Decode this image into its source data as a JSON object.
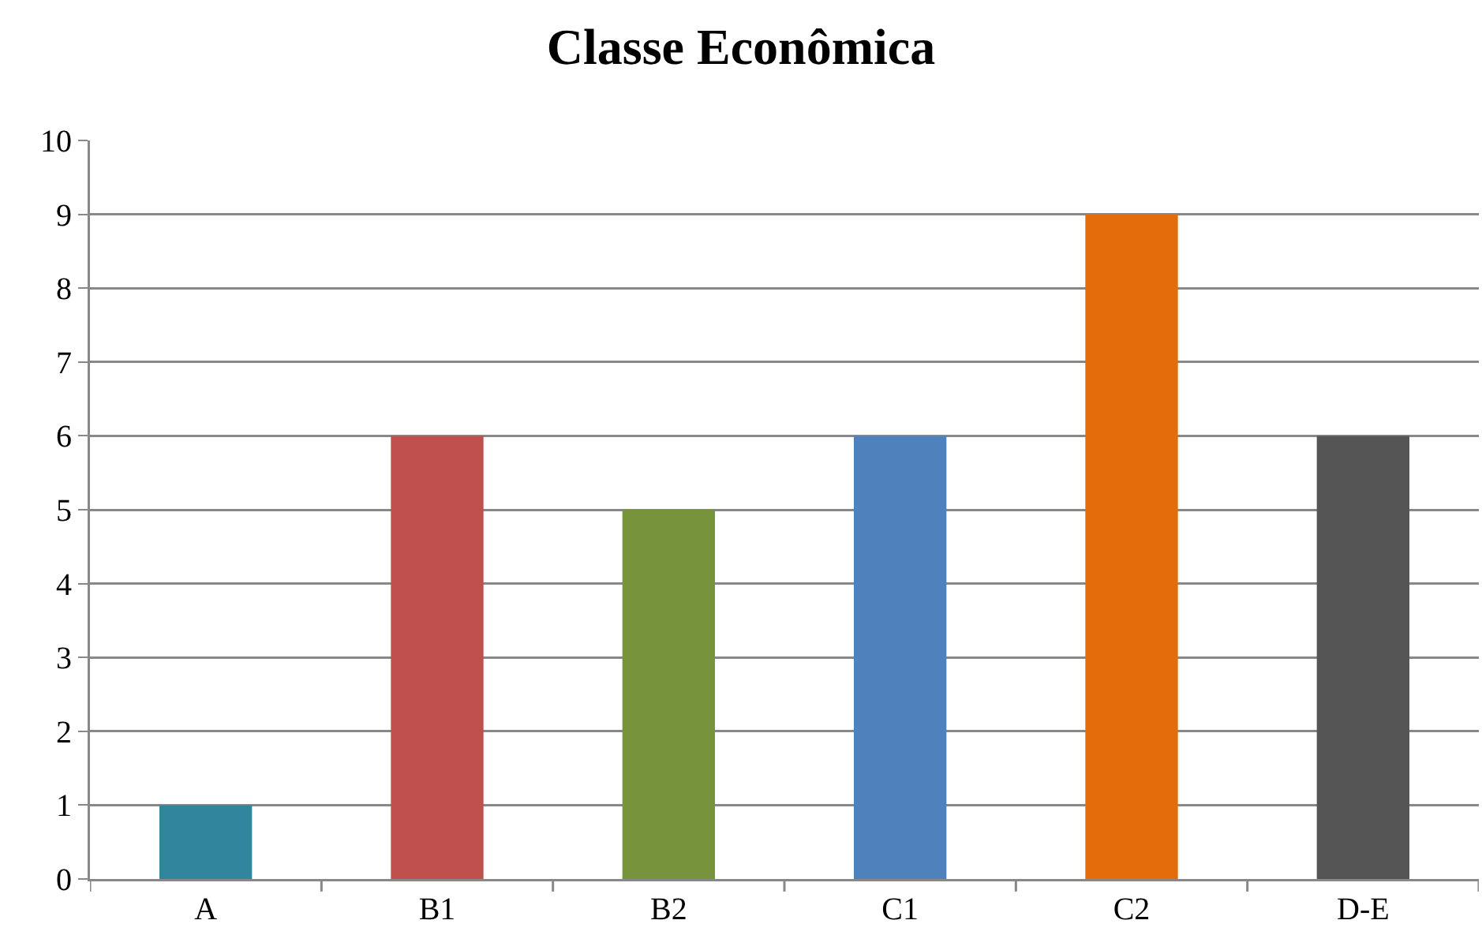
{
  "chart_data": {
    "type": "bar",
    "title": "Classe Econômica",
    "categories": [
      "A",
      "B1",
      "B2",
      "C1",
      "C2",
      "D-E"
    ],
    "values": [
      1,
      6,
      5,
      6,
      9,
      6
    ],
    "colors": [
      "#31859c",
      "#c0504d",
      "#77933c",
      "#4f81bd",
      "#e46c0a",
      "#555555"
    ],
    "ylim": [
      0,
      10
    ],
    "yticks": [
      0,
      1,
      2,
      3,
      4,
      5,
      6,
      7,
      8,
      9,
      10
    ],
    "grid": "y",
    "legend": false
  }
}
